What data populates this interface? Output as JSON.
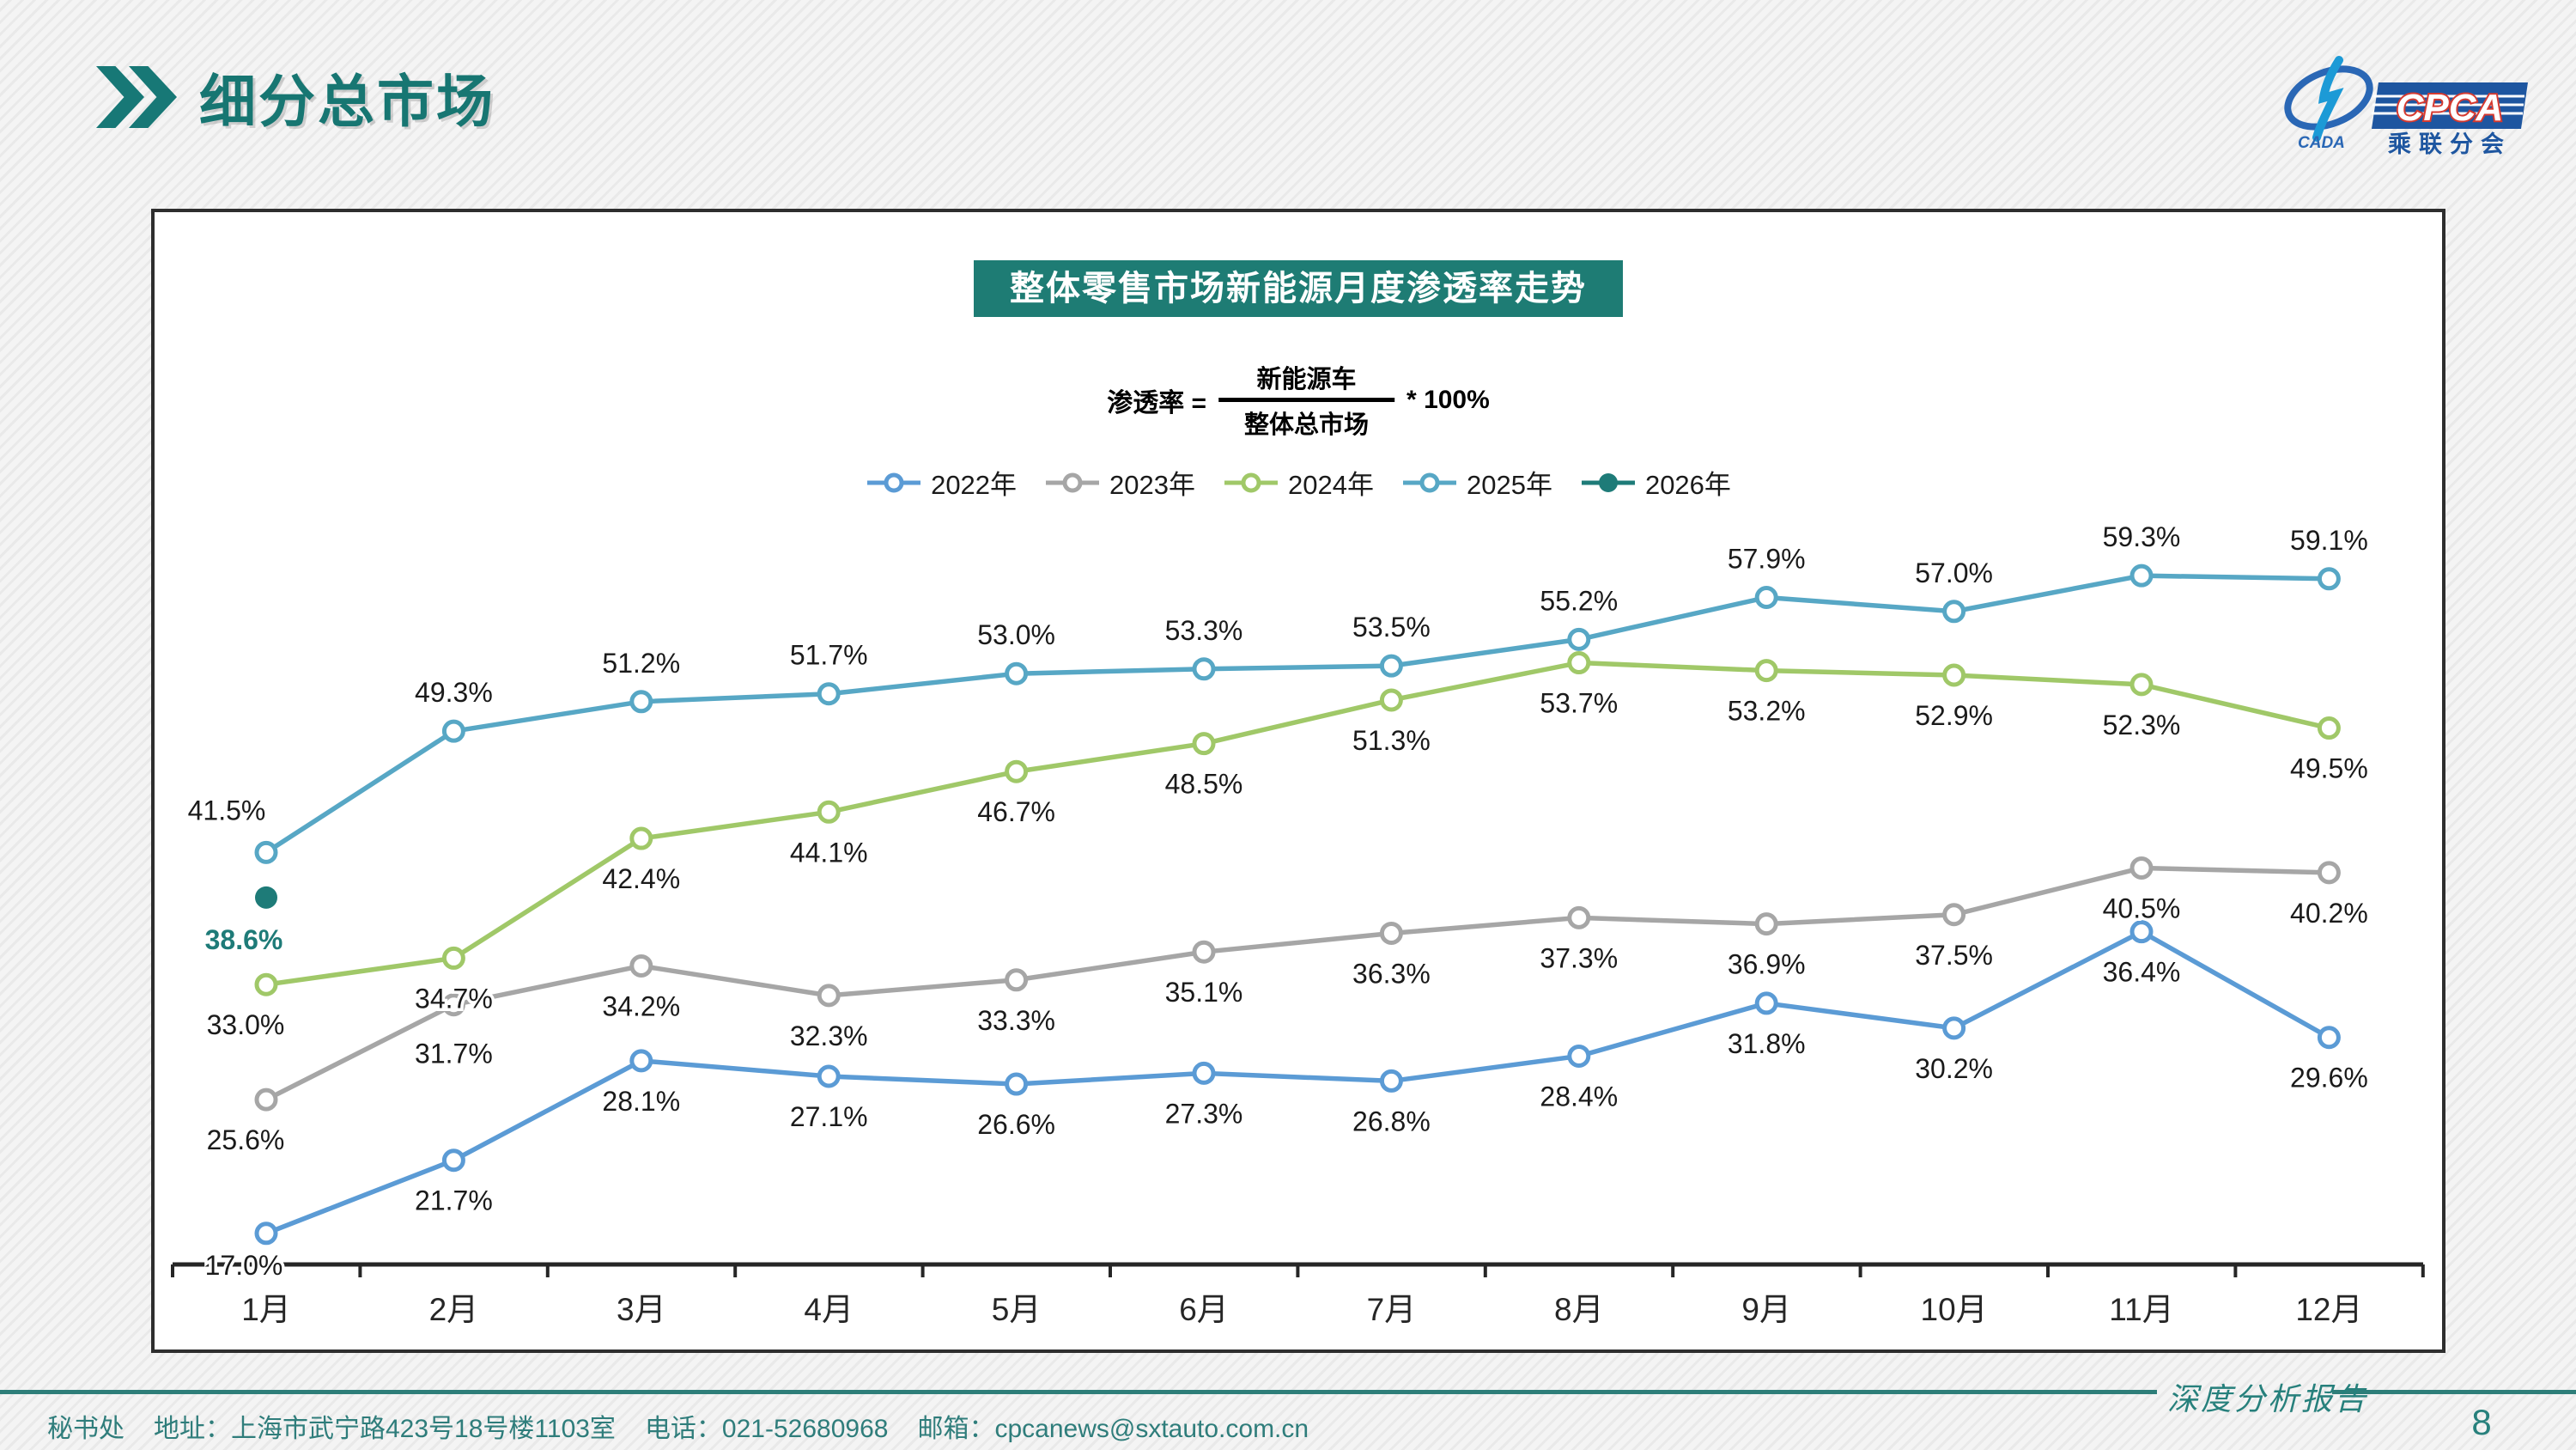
{
  "header": {
    "title": "细分总市场"
  },
  "logo": {
    "cada": "CADA",
    "cpca": "CPCA",
    "subtitle": "乘联分会"
  },
  "chart": {
    "title": "整体零售市场新能源月度渗透率走势",
    "formula": {
      "lhs": "渗透率 =",
      "numerator": "新能源车",
      "denominator": "整体总市场",
      "rhs": "* 100%"
    }
  },
  "chart_data": {
    "type": "line",
    "title": "整体零售市场新能源月度渗透率走势",
    "categories": [
      "1月",
      "2月",
      "3月",
      "4月",
      "5月",
      "6月",
      "7月",
      "8月",
      "9月",
      "10月",
      "11月",
      "12月"
    ],
    "unit": "%",
    "ylim": [
      15,
      65
    ],
    "grid": false,
    "legend_position": "top-center",
    "series": [
      {
        "name": "2022年",
        "color": "#5B9BD5",
        "marker": "open-circle",
        "label_position": "below",
        "values": [
          17.0,
          21.7,
          28.1,
          27.1,
          26.6,
          27.3,
          26.8,
          28.4,
          31.8,
          30.2,
          36.4,
          29.6
        ]
      },
      {
        "name": "2023年",
        "color": "#A6A6A6",
        "marker": "open-circle",
        "label_position": "below",
        "values": [
          25.6,
          31.7,
          34.2,
          32.3,
          33.3,
          35.1,
          36.3,
          37.3,
          36.9,
          37.5,
          40.5,
          40.2
        ]
      },
      {
        "name": "2024年",
        "color": "#A0C868",
        "marker": "open-circle",
        "label_position": "below",
        "values": [
          33.0,
          34.7,
          42.4,
          44.1,
          46.7,
          48.5,
          51.3,
          53.7,
          53.2,
          52.9,
          52.3,
          49.5
        ]
      },
      {
        "name": "2025年",
        "color": "#57A7C5",
        "marker": "open-circle",
        "label_position": "above",
        "values": [
          41.5,
          49.3,
          51.2,
          51.7,
          53.0,
          53.3,
          53.5,
          55.2,
          57.9,
          57.0,
          59.3,
          59.1
        ]
      },
      {
        "name": "2026年",
        "color": "#1E7B78",
        "marker": "filled-circle",
        "label_position": "below",
        "label_color": "#1E7B78",
        "label_bold": true,
        "values": [
          38.6,
          null,
          null,
          null,
          null,
          null,
          null,
          null,
          null,
          null,
          null,
          null
        ]
      }
    ]
  },
  "footer": {
    "secretariat": "秘书处",
    "address": "地址：上海市武宁路423号18号楼1103室",
    "phone": "电话：021-52680968",
    "email": "邮箱：cpcanews@sxtauto.com.cn",
    "report_label": "深度分析报告",
    "page_number": "8"
  }
}
